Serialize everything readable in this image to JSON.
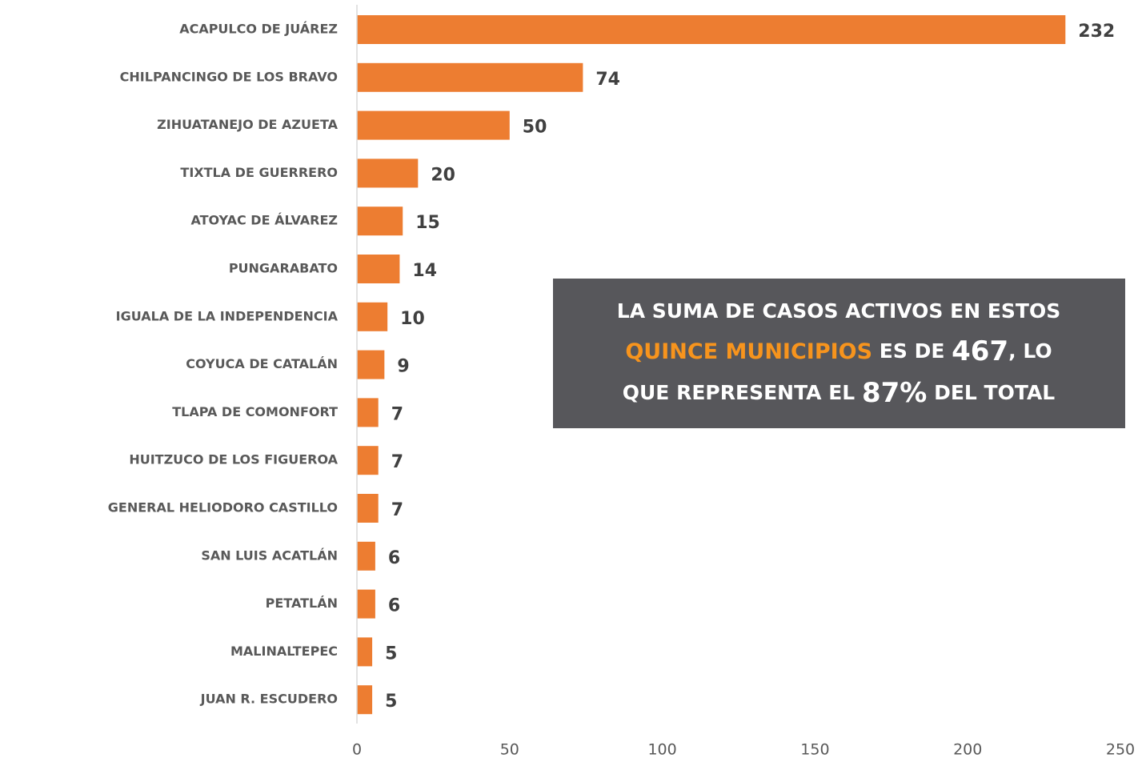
{
  "chart_data": {
    "type": "barh",
    "categories": [
      "ACAPULCO DE JUÁREZ",
      "CHILPANCINGO DE LOS BRAVO",
      "ZIHUATANEJO DE AZUETA",
      "TIXTLA DE GUERRERO",
      "ATOYAC DE ÁLVAREZ",
      "PUNGARABATO",
      "IGUALA DE LA INDEPENDENCIA",
      "COYUCA DE CATALÁN",
      "TLAPA DE COMONFORT",
      "HUITZUCO DE LOS FIGUEROA",
      "GENERAL HELIODORO CASTILLO",
      "SAN LUIS ACATLÁN",
      "PETATLÁN",
      "MALINALTEPEC",
      "JUAN R. ESCUDERO"
    ],
    "values": [
      232,
      74,
      50,
      20,
      15,
      14,
      10,
      9,
      7,
      7,
      7,
      6,
      6,
      5,
      5
    ],
    "color": "#ed7d31",
    "xlim": [
      0,
      250
    ],
    "xticks": [
      0,
      50,
      100,
      150,
      200,
      250
    ],
    "grid": false,
    "annotation": [
      "LA SUMA DE CASOS ACTIVOS EN ESTOS",
      "QUINCE MUNICIPIOS",
      "ES DE",
      "467",
      ", LO",
      "QUE REPRESENTA EL",
      "87%",
      "DEL TOTAL"
    ]
  }
}
